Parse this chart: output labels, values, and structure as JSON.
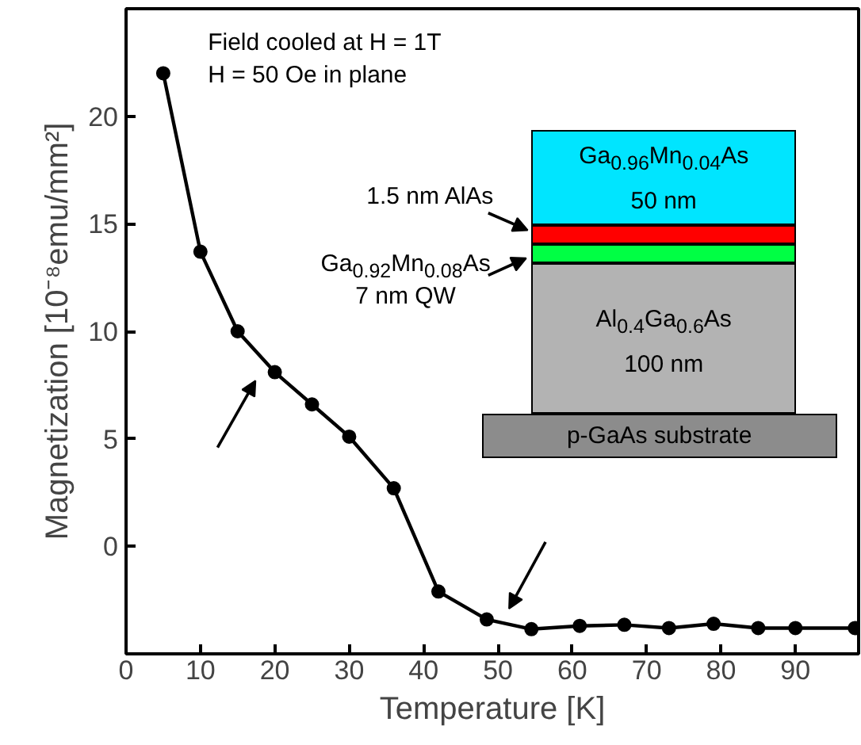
{
  "chart_data": {
    "type": "line",
    "xlabel": "Temperature [K]",
    "ylabel": "Magnetization [10⁻⁸emu/mm²]",
    "x": [
      5,
      10,
      15,
      20,
      25,
      30,
      36,
      42,
      48.5,
      54.5,
      61,
      67,
      73,
      79,
      85,
      90,
      98
    ],
    "series": [
      {
        "color": "#000000",
        "values": [
          22,
          13.7,
          10,
          8.1,
          6.6,
          5.1,
          2.7,
          -2.1,
          -3.4,
          -3.85,
          -3.7,
          -3.65,
          -3.8,
          -3.6,
          -3.8,
          -3.8,
          -3.8
        ]
      }
    ],
    "xlim": [
      0,
      98.5
    ],
    "ylim": [
      -5,
      25
    ],
    "xticks": [
      0,
      10,
      20,
      30,
      40,
      50,
      60,
      70,
      80,
      90
    ],
    "yticks": [
      0,
      5,
      10,
      15,
      20
    ],
    "marker": "circle",
    "line_style": "solid",
    "grid": false,
    "annotations": [
      "Field cooled at H = 1T",
      "H = 50 Oe in plane",
      "Ga$_{0.96}$Mn$_{0.04}$As",
      "50 nm",
      "1.5 nm AlAs",
      "Ga$_{0.92}$Mn$_{0.08}$As",
      "7 nm QW",
      "Al$_{0.4}$Ga$_{0.6}$As",
      "100 nm",
      "p-GaAs substrate"
    ]
  }
}
